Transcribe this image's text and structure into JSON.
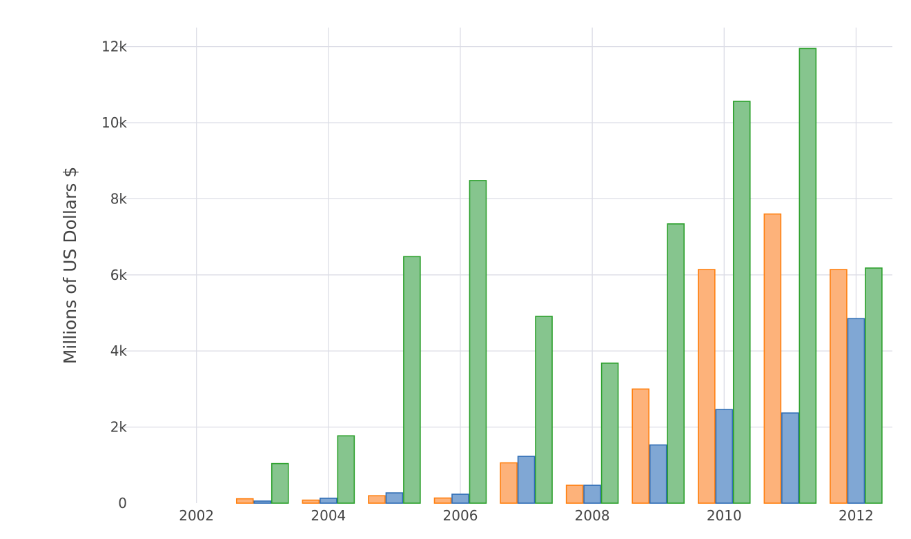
{
  "chart_data": {
    "type": "bar",
    "title": "",
    "xlabel": "",
    "ylabel": "Millions of US Dollars $",
    "x": [
      2003,
      2004,
      2005,
      2006,
      2007,
      2008,
      2009,
      2010,
      2011,
      2012
    ],
    "xlim": [
      2000.8,
      2012.55
    ],
    "ylim": [
      0,
      12500
    ],
    "x_ticks": [
      {
        "value": 2002,
        "label": "2002"
      },
      {
        "value": 2004,
        "label": "2004"
      },
      {
        "value": 2006,
        "label": "2006"
      },
      {
        "value": 2008,
        "label": "2008"
      },
      {
        "value": 2010,
        "label": "2010"
      },
      {
        "value": 2012,
        "label": "2012"
      }
    ],
    "y_ticks": [
      {
        "value": 0,
        "label": "0"
      },
      {
        "value": 2000,
        "label": "2k"
      },
      {
        "value": 4000,
        "label": "4k"
      },
      {
        "value": 6000,
        "label": "6k"
      },
      {
        "value": 8000,
        "label": "8k"
      },
      {
        "value": 10000,
        "label": "10k"
      },
      {
        "value": 12000,
        "label": "12k"
      }
    ],
    "grid": true,
    "legend": "none",
    "series": [
      {
        "color": "#ff7f0e",
        "fill": "#fdb27a",
        "values": [
          115,
          80,
          195,
          135,
          1060,
          470,
          3000,
          6140,
          7600,
          6140
        ]
      },
      {
        "color": "#2f6db5",
        "fill": "#80a7d4",
        "values": [
          55,
          130,
          270,
          235,
          1230,
          470,
          1530,
          2460,
          2370,
          4850
        ]
      },
      {
        "color": "#2ca02c",
        "fill": "#86c58e",
        "values": [
          1040,
          1770,
          6480,
          8480,
          4910,
          3680,
          7340,
          10560,
          11950,
          6180
        ]
      }
    ]
  }
}
